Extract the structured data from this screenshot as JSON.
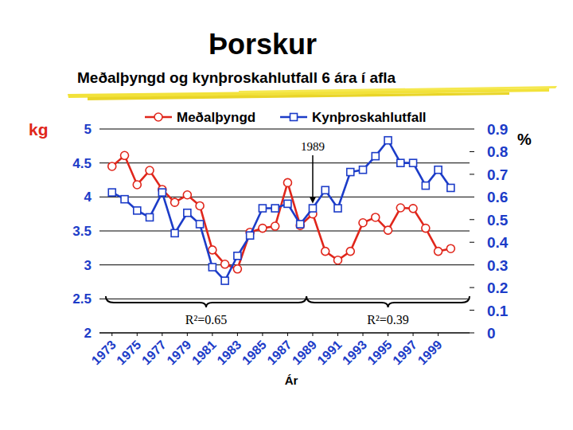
{
  "chart_data": {
    "type": "line",
    "title": "Þorskur",
    "subtitle": "Meðalþyngd og kynþroskahlutfall 6 ára í afla",
    "y_label": "kg",
    "y2_label": "%",
    "x_label": "Ár",
    "x": [
      1973,
      1974,
      1975,
      1976,
      1977,
      1978,
      1979,
      1980,
      1981,
      1982,
      1983,
      1984,
      1985,
      1986,
      1987,
      1988,
      1989,
      1990,
      1991,
      1992,
      1993,
      1994,
      1995,
      1996,
      1997,
      1998,
      1999,
      2000
    ],
    "xlim": [
      1972,
      2001.5
    ],
    "xticks": [
      1973,
      1975,
      1977,
      1979,
      1981,
      1983,
      1985,
      1987,
      1989,
      1991,
      1993,
      1995,
      1997,
      1999
    ],
    "ylim": [
      2,
      5
    ],
    "yticks": [
      2,
      2.5,
      3,
      3.5,
      4,
      4.5,
      5
    ],
    "y2lim": [
      0,
      0.9
    ],
    "y2ticks": [
      0,
      0.1,
      0.2,
      0.3,
      0.4,
      0.5,
      0.6,
      0.7,
      0.8,
      0.9
    ],
    "grid": true,
    "legend": "top",
    "series": [
      {
        "name": "Meðalþyngd",
        "color": "#e0261b",
        "marker": "circle",
        "line_style": "solid",
        "values": [
          4.45,
          4.61,
          4.18,
          4.39,
          4.11,
          3.92,
          4.03,
          3.87,
          3.22,
          3.01,
          2.94,
          3.48,
          3.54,
          3.57,
          4.21,
          3.58,
          3.75,
          3.2,
          3.07,
          3.2,
          3.62,
          3.7,
          3.51,
          3.84,
          3.83,
          3.54,
          3.2,
          3.24
        ]
      },
      {
        "name": "Kynþroskahlutfall",
        "color": "#1c3cc8",
        "marker": "square",
        "line_style": "solid",
        "axis": "y2",
        "values": [
          0.62,
          0.59,
          0.54,
          0.51,
          0.62,
          0.44,
          0.53,
          0.48,
          0.29,
          0.23,
          0.34,
          0.43,
          0.55,
          0.55,
          0.57,
          0.48,
          0.55,
          0.63,
          0.55,
          0.71,
          0.72,
          0.78,
          0.85,
          0.75,
          0.75,
          0.65,
          0.72,
          0.64
        ]
      }
    ],
    "annotations": [
      {
        "text": "1989",
        "x": 1989
      },
      {
        "text": "R²=0.65",
        "from": 1972.5,
        "to": 1988.5
      },
      {
        "text": "R²=0.39",
        "from": 1988.5,
        "to": 2001.5
      }
    ]
  }
}
